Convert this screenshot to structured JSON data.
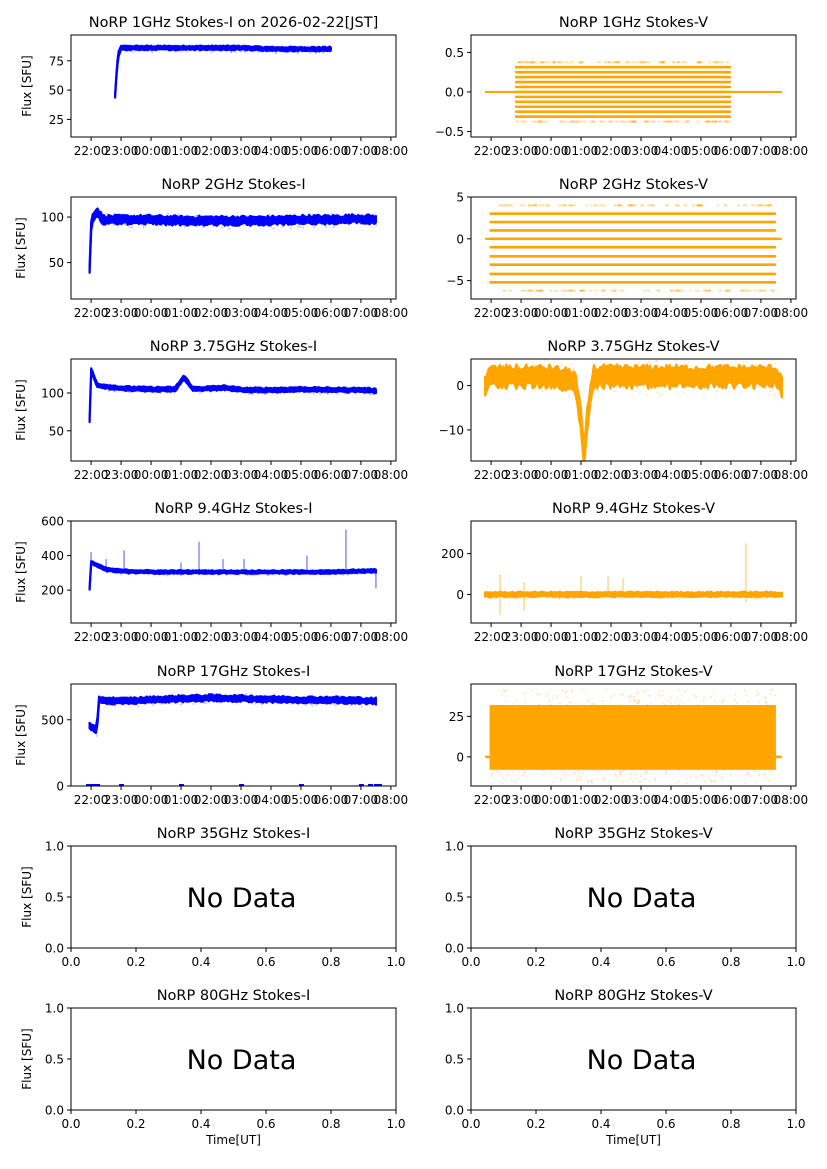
{
  "figure": {
    "x_label": "Time[UT]",
    "y_label": "Flux [SFU]",
    "colors": {
      "stokes_i": "#0000ff",
      "stokes_v": "#ffa500"
    }
  },
  "chart_data": [
    {
      "id": "1ghz-i",
      "type": "scatter",
      "title": "NoRP 1GHz Stokes-I on 2026-02-22[JST]",
      "ylabel": "Flux [SFU]",
      "xlabel": "",
      "color": "#0000ff",
      "xlim": [
        21.33,
        32.17
      ],
      "ylim": [
        10,
        97
      ],
      "xticks": [
        "22:00",
        "23:00",
        "00:00",
        "01:00",
        "02:00",
        "03:00",
        "04:00",
        "05:00",
        "06:00",
        "07:00",
        "08:00"
      ],
      "yticks": [
        25,
        50,
        75
      ],
      "series": [
        {
          "name": "Stokes-I",
          "x": [
            22.8,
            22.85,
            22.9,
            23.0,
            24.0,
            25.0,
            26.0,
            27.0,
            28.0,
            29.0,
            30.0
          ],
          "y": [
            45,
            65,
            80,
            86,
            86,
            86,
            86,
            86,
            85,
            85,
            85
          ],
          "spread": 1.5
        }
      ]
    },
    {
      "id": "1ghz-v",
      "type": "scatter",
      "title": "NoRP 1GHz Stokes-V",
      "ylabel": "",
      "xlabel": "",
      "color": "#ffa500",
      "xlim": [
        21.33,
        32.17
      ],
      "ylim": [
        -0.57,
        0.72
      ],
      "xticks": [
        "22:00",
        "23:00",
        "00:00",
        "01:00",
        "02:00",
        "03:00",
        "04:00",
        "05:00",
        "06:00",
        "07:00",
        "08:00"
      ],
      "yticks": [
        -0.5,
        0.0,
        0.5
      ],
      "series": [
        {
          "name": "Stokes-V",
          "x": [
            21.8,
            22.8,
            30.0,
            31.7
          ],
          "y": [
            0,
            0,
            0,
            0
          ],
          "levels": [
            -0.375,
            -0.3125,
            -0.25,
            -0.1875,
            -0.125,
            -0.0625,
            0,
            0.0625,
            0.125,
            0.1875,
            0.25,
            0.3125,
            0.375
          ],
          "band_x": [
            22.8,
            30.0
          ]
        }
      ]
    },
    {
      "id": "2ghz-i",
      "type": "scatter",
      "title": "NoRP 2GHz Stokes-I",
      "ylabel": "Flux [SFU]",
      "xlabel": "",
      "color": "#0000ff",
      "xlim": [
        21.33,
        32.17
      ],
      "ylim": [
        10,
        122
      ],
      "xticks": [
        "22:00",
        "23:00",
        "00:00",
        "01:00",
        "02:00",
        "03:00",
        "04:00",
        "05:00",
        "06:00",
        "07:00",
        "08:00"
      ],
      "yticks": [
        50,
        100
      ],
      "series": [
        {
          "name": "Stokes-I",
          "x": [
            21.95,
            22.0,
            22.05,
            22.2,
            22.4,
            23.0,
            24.0,
            25.0,
            26.0,
            27.0,
            28.0,
            29.0,
            30.0,
            31.0,
            31.5
          ],
          "y": [
            42,
            90,
            100,
            106,
            97,
            97,
            97,
            96,
            96,
            96,
            96,
            97,
            97,
            98,
            97
          ],
          "spread": 4
        }
      ]
    },
    {
      "id": "2ghz-v",
      "type": "scatter",
      "title": "NoRP 2GHz Stokes-V",
      "ylabel": "",
      "xlabel": "",
      "color": "#ffa500",
      "xlim": [
        21.33,
        32.17
      ],
      "ylim": [
        -7.2,
        5
      ],
      "xticks": [
        "22:00",
        "23:00",
        "00:00",
        "01:00",
        "02:00",
        "03:00",
        "04:00",
        "05:00",
        "06:00",
        "07:00",
        "08:00"
      ],
      "yticks": [
        -5,
        0,
        5
      ],
      "series": [
        {
          "name": "Stokes-V",
          "x": [
            21.8,
            31.7
          ],
          "y": [
            0,
            0
          ],
          "levels": [
            -6.2,
            -5.2,
            -4.2,
            -3.1,
            -2.1,
            -1.0,
            0,
            1.0,
            2.0,
            3.0,
            4.0
          ],
          "band_x": [
            21.95,
            31.5
          ]
        }
      ]
    },
    {
      "id": "3-75ghz-i",
      "type": "scatter",
      "title": "NoRP 3.75GHz Stokes-I",
      "ylabel": "Flux [SFU]",
      "xlabel": "",
      "color": "#0000ff",
      "xlim": [
        21.33,
        32.17
      ],
      "ylim": [
        10,
        145
      ],
      "xticks": [
        "22:00",
        "23:00",
        "00:00",
        "01:00",
        "02:00",
        "03:00",
        "04:00",
        "05:00",
        "06:00",
        "07:00",
        "08:00"
      ],
      "yticks": [
        50,
        100
      ],
      "series": [
        {
          "name": "Stokes-I",
          "x": [
            21.95,
            22.0,
            22.2,
            23.0,
            24.0,
            24.8,
            25.1,
            25.4,
            26.0,
            26.5,
            27.0,
            28.0,
            29.0,
            30.0,
            31.0,
            31.5
          ],
          "y": [
            65,
            130,
            110,
            106,
            105,
            105,
            121,
            105,
            106,
            107,
            104,
            104,
            105,
            104,
            104,
            103
          ],
          "spread": 2.5
        }
      ]
    },
    {
      "id": "3-75ghz-v",
      "type": "scatter",
      "title": "NoRP 3.75GHz Stokes-V",
      "ylabel": "",
      "xlabel": "",
      "color": "#ffa500",
      "xlim": [
        21.33,
        32.17
      ],
      "ylim": [
        -17,
        6
      ],
      "xticks": [
        "22:00",
        "23:00",
        "00:00",
        "01:00",
        "02:00",
        "03:00",
        "04:00",
        "05:00",
        "06:00",
        "07:00",
        "08:00"
      ],
      "yticks": [
        -10,
        0
      ],
      "series": [
        {
          "name": "Stokes-V",
          "x": [
            21.8,
            22.0,
            23.0,
            24.0,
            24.8,
            25.0,
            25.1,
            25.2,
            25.4,
            26.0,
            27.0,
            28.0,
            29.0,
            30.0,
            31.5,
            31.7
          ],
          "y": [
            0,
            2,
            2,
            2,
            1,
            -8,
            -16,
            -8,
            2,
            2,
            2,
            2,
            2,
            2,
            2,
            0
          ],
          "spread": 2
        }
      ]
    },
    {
      "id": "9-4ghz-i",
      "type": "scatter",
      "title": "NoRP 9.4GHz Stokes-I",
      "ylabel": "Flux [SFU]",
      "xlabel": "",
      "color": "#0000ff",
      "xlim": [
        21.33,
        32.17
      ],
      "ylim": [
        10,
        600
      ],
      "xticks": [
        "22:00",
        "23:00",
        "00:00",
        "01:00",
        "02:00",
        "03:00",
        "04:00",
        "05:00",
        "06:00",
        "07:00",
        "08:00"
      ],
      "yticks": [
        200,
        400,
        600
      ],
      "series": [
        {
          "name": "Stokes-I",
          "x": [
            21.95,
            22.0,
            22.5,
            23.0,
            24.0,
            25.0,
            26.0,
            27.0,
            28.0,
            29.0,
            30.0,
            31.0,
            31.5
          ],
          "y": [
            210,
            360,
            320,
            310,
            305,
            305,
            305,
            305,
            305,
            305,
            305,
            310,
            312
          ],
          "spread": 8,
          "spikes": [
            [
              22.0,
              420
            ],
            [
              22.5,
              380
            ],
            [
              23.1,
              430
            ],
            [
              25.0,
              360
            ],
            [
              25.6,
              480
            ],
            [
              26.4,
              380
            ],
            [
              27.1,
              380
            ],
            [
              29.2,
              400
            ],
            [
              30.5,
              550
            ],
            [
              31.5,
              210
            ]
          ]
        }
      ]
    },
    {
      "id": "9-4ghz-v",
      "type": "scatter",
      "title": "NoRP 9.4GHz Stokes-V",
      "ylabel": "",
      "xlabel": "",
      "color": "#ffa500",
      "xlim": [
        21.33,
        32.17
      ],
      "ylim": [
        -140,
        360
      ],
      "xticks": [
        "22:00",
        "23:00",
        "00:00",
        "01:00",
        "02:00",
        "03:00",
        "04:00",
        "05:00",
        "06:00",
        "07:00",
        "08:00"
      ],
      "yticks": [
        0,
        200
      ],
      "series": [
        {
          "name": "Stokes-V",
          "x": [
            21.8,
            31.7
          ],
          "y": [
            0,
            0
          ],
          "spread": 10,
          "spikes": [
            [
              22.3,
              -100
            ],
            [
              22.3,
              100
            ],
            [
              23.1,
              -80
            ],
            [
              23.1,
              60
            ],
            [
              25.0,
              90
            ],
            [
              25.9,
              90
            ],
            [
              26.4,
              80
            ],
            [
              30.5,
              250
            ],
            [
              30.5,
              -40
            ]
          ]
        }
      ]
    },
    {
      "id": "17ghz-i",
      "type": "scatter",
      "title": "NoRP 17GHz Stokes-I",
      "ylabel": "Flux [SFU]",
      "xlabel": "",
      "color": "#0000ff",
      "xlim": [
        21.33,
        32.17
      ],
      "ylim": [
        0,
        770
      ],
      "xticks": [
        "22:00",
        "23:00",
        "00:00",
        "01:00",
        "02:00",
        "03:00",
        "04:00",
        "05:00",
        "06:00",
        "07:00",
        "08:00"
      ],
      "yticks": [
        0,
        500
      ],
      "series": [
        {
          "name": "Stokes-I",
          "x": [
            21.95,
            22.2,
            22.25,
            23.0,
            24.0,
            25.0,
            26.0,
            27.0,
            28.0,
            29.0,
            30.0,
            31.0,
            31.5
          ],
          "y": [
            450,
            420,
            650,
            640,
            650,
            660,
            665,
            660,
            655,
            650,
            650,
            645,
            640
          ],
          "spread": 20,
          "zeros_x": [
            21.9,
            22.0,
            22.1,
            22.2,
            23.0,
            25.0,
            27.0,
            29.0,
            31.0,
            31.3,
            31.5,
            31.6
          ]
        }
      ]
    },
    {
      "id": "17ghz-v",
      "type": "scatter",
      "title": "NoRP 17GHz Stokes-V",
      "ylabel": "",
      "xlabel": "",
      "color": "#ffa500",
      "xlim": [
        21.33,
        32.17
      ],
      "ylim": [
        -18,
        45
      ],
      "xticks": [
        "22:00",
        "23:00",
        "00:00",
        "01:00",
        "02:00",
        "03:00",
        "04:00",
        "05:00",
        "06:00",
        "07:00",
        "08:00"
      ],
      "yticks": [
        0,
        25
      ],
      "series": [
        {
          "name": "Stokes-V",
          "x": [
            21.8,
            31.7
          ],
          "y": [
            0,
            0
          ],
          "band_x": [
            21.95,
            31.5
          ],
          "band_y": [
            -8,
            32
          ]
        }
      ]
    },
    {
      "id": "35ghz-i",
      "type": "scatter",
      "title": "NoRP 35GHz Stokes-I",
      "ylabel": "Flux [SFU]",
      "xlabel": "",
      "color": "#0000ff",
      "xlim": [
        0,
        1
      ],
      "ylim": [
        0,
        1
      ],
      "xticks": [
        "0.0",
        "0.2",
        "0.4",
        "0.6",
        "0.8",
        "1.0"
      ],
      "yticks": [
        0.0,
        0.5,
        1.0
      ],
      "annotation": "No Data",
      "series": []
    },
    {
      "id": "35ghz-v",
      "type": "scatter",
      "title": "NoRP 35GHz Stokes-V",
      "ylabel": "",
      "xlabel": "",
      "color": "#ffa500",
      "xlim": [
        0,
        1
      ],
      "ylim": [
        0,
        1
      ],
      "xticks": [
        "0.0",
        "0.2",
        "0.4",
        "0.6",
        "0.8",
        "1.0"
      ],
      "yticks": [
        0.0,
        0.5,
        1.0
      ],
      "annotation": "No Data",
      "series": []
    },
    {
      "id": "80ghz-i",
      "type": "scatter",
      "title": "NoRP 80GHz Stokes-I",
      "ylabel": "Flux [SFU]",
      "xlabel": "Time[UT]",
      "color": "#0000ff",
      "xlim": [
        0,
        1
      ],
      "ylim": [
        0,
        1
      ],
      "xticks": [
        "0.0",
        "0.2",
        "0.4",
        "0.6",
        "0.8",
        "1.0"
      ],
      "yticks": [
        0.0,
        0.5,
        1.0
      ],
      "annotation": "No Data",
      "series": []
    },
    {
      "id": "80ghz-v",
      "type": "scatter",
      "title": "NoRP 80GHz Stokes-V",
      "ylabel": "",
      "xlabel": "Time[UT]",
      "color": "#ffa500",
      "xlim": [
        0,
        1
      ],
      "ylim": [
        0,
        1
      ],
      "xticks": [
        "0.0",
        "0.2",
        "0.4",
        "0.6",
        "0.8",
        "1.0"
      ],
      "yticks": [
        0.0,
        0.5,
        1.0
      ],
      "annotation": "No Data",
      "series": []
    }
  ]
}
